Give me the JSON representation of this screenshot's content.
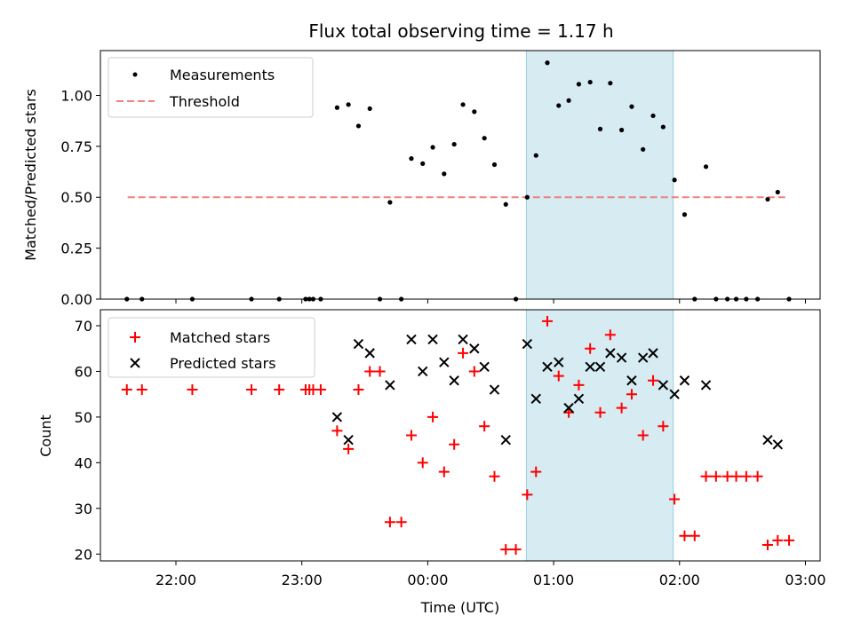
{
  "chart_data": [
    {
      "type": "scatter",
      "title": "Flux total observing time = 1.17 h",
      "xlabel": "",
      "ylabel": "Matched/Predicted stars",
      "ylim": [
        0,
        1.22
      ],
      "yticks": [
        "0.00",
        "0.25",
        "0.50",
        "0.75",
        "1.00"
      ],
      "ytick_values": [
        0,
        0.25,
        0.5,
        0.75,
        1.0
      ],
      "x_unit": "hours since 00:00 UTC",
      "shaded_interval": [
        "00:47",
        "01:57"
      ],
      "legend_position": "top-left",
      "threshold": {
        "name": "Threshold",
        "value": 0.5,
        "x_range": [
          "21:37",
          "02:52"
        ],
        "color": "#f08080"
      },
      "series": [
        {
          "name": "Measurements",
          "marker": "dot",
          "color": "#000000",
          "points": [
            [
              -2.39,
              0.0
            ],
            [
              -2.27,
              0.0
            ],
            [
              -1.87,
              0.0
            ],
            [
              -1.4,
              0.0
            ],
            [
              -1.18,
              0.0
            ],
            [
              -0.97,
              0.0
            ],
            [
              -0.94,
              0.0
            ],
            [
              -0.91,
              0.0
            ],
            [
              -0.85,
              0.0
            ],
            [
              -0.72,
              0.94
            ],
            [
              -0.63,
              0.955
            ],
            [
              -0.55,
              0.85
            ],
            [
              -0.46,
              0.935
            ],
            [
              -0.38,
              0.0
            ],
            [
              -0.3,
              0.475
            ],
            [
              -0.21,
              0.0
            ],
            [
              -0.13,
              0.69
            ],
            [
              -0.04,
              0.665
            ],
            [
              0.04,
              0.745
            ],
            [
              0.13,
              0.615
            ],
            [
              0.21,
              0.76
            ],
            [
              0.28,
              0.955
            ],
            [
              0.37,
              0.92
            ],
            [
              0.45,
              0.79
            ],
            [
              0.53,
              0.66
            ],
            [
              0.62,
              0.465
            ],
            [
              0.7,
              0.0
            ],
            [
              0.79,
              0.5
            ],
            [
              0.86,
              0.705
            ],
            [
              0.95,
              1.16
            ],
            [
              1.04,
              0.95
            ],
            [
              1.12,
              0.975
            ],
            [
              1.2,
              1.055
            ],
            [
              1.29,
              1.065
            ],
            [
              1.37,
              0.835
            ],
            [
              1.45,
              1.06
            ],
            [
              1.54,
              0.83
            ],
            [
              1.62,
              0.945
            ],
            [
              1.71,
              0.735
            ],
            [
              1.79,
              0.9
            ],
            [
              1.87,
              0.845
            ],
            [
              1.96,
              0.585
            ],
            [
              2.04,
              0.415
            ],
            [
              2.12,
              0.0
            ],
            [
              2.21,
              0.65
            ],
            [
              2.29,
              0.0
            ],
            [
              2.38,
              0.0
            ],
            [
              2.45,
              0.0
            ],
            [
              2.53,
              0.0
            ],
            [
              2.62,
              0.0
            ],
            [
              2.7,
              0.49
            ],
            [
              2.78,
              0.525
            ],
            [
              2.87,
              0.0
            ]
          ]
        }
      ]
    },
    {
      "type": "scatter",
      "title": "",
      "xlabel": "Time (UTC)",
      "ylabel": "Count",
      "ylim": [
        18.5,
        73.5
      ],
      "yticks": [
        "20",
        "30",
        "40",
        "50",
        "60",
        "70"
      ],
      "ytick_values": [
        20,
        30,
        40,
        50,
        60,
        70
      ],
      "xlim": [
        "21:24",
        "03:07"
      ],
      "xtick_labels": [
        "22:00",
        "23:00",
        "00:00",
        "01:00",
        "02:00",
        "03:00"
      ],
      "xtick_values": [
        -2,
        -1,
        0,
        1,
        2,
        3
      ],
      "x_unit": "hours since 00:00 UTC",
      "shaded_interval": [
        "00:47",
        "01:57"
      ],
      "legend_position": "top-left",
      "series": [
        {
          "name": "Matched stars",
          "marker": "plus",
          "color": "#ff0000",
          "points": [
            [
              -2.39,
              56
            ],
            [
              -2.27,
              56
            ],
            [
              -1.87,
              56
            ],
            [
              -1.4,
              56
            ],
            [
              -1.18,
              56
            ],
            [
              -0.97,
              56
            ],
            [
              -0.94,
              56
            ],
            [
              -0.91,
              56
            ],
            [
              -0.85,
              56
            ],
            [
              -0.72,
              47
            ],
            [
              -0.63,
              43
            ],
            [
              -0.55,
              56
            ],
            [
              -0.46,
              60
            ],
            [
              -0.38,
              60
            ],
            [
              -0.3,
              27
            ],
            [
              -0.21,
              27
            ],
            [
              -0.13,
              46
            ],
            [
              -0.04,
              40
            ],
            [
              0.04,
              50
            ],
            [
              0.13,
              38
            ],
            [
              0.21,
              44
            ],
            [
              0.28,
              64
            ],
            [
              0.37,
              60
            ],
            [
              0.45,
              48
            ],
            [
              0.53,
              37
            ],
            [
              0.62,
              21
            ],
            [
              0.7,
              21
            ],
            [
              0.79,
              33
            ],
            [
              0.86,
              38
            ],
            [
              0.95,
              71
            ],
            [
              1.04,
              59
            ],
            [
              1.12,
              51
            ],
            [
              1.2,
              57
            ],
            [
              1.29,
              65
            ],
            [
              1.37,
              51
            ],
            [
              1.45,
              68
            ],
            [
              1.54,
              52
            ],
            [
              1.62,
              55
            ],
            [
              1.71,
              46
            ],
            [
              1.79,
              58
            ],
            [
              1.87,
              48
            ],
            [
              1.96,
              32
            ],
            [
              2.04,
              24
            ],
            [
              2.12,
              24
            ],
            [
              2.21,
              37
            ],
            [
              2.29,
              37
            ],
            [
              2.38,
              37
            ],
            [
              2.45,
              37
            ],
            [
              2.53,
              37
            ],
            [
              2.62,
              37
            ],
            [
              2.7,
              22
            ],
            [
              2.78,
              23
            ],
            [
              2.87,
              23
            ]
          ]
        },
        {
          "name": "Predicted stars",
          "marker": "x",
          "color": "#000000",
          "points": [
            [
              -0.72,
              50
            ],
            [
              -0.63,
              45
            ],
            [
              -0.55,
              66
            ],
            [
              -0.46,
              64
            ],
            [
              -0.3,
              57
            ],
            [
              -0.13,
              67
            ],
            [
              -0.04,
              60
            ],
            [
              0.04,
              67
            ],
            [
              0.13,
              62
            ],
            [
              0.21,
              58
            ],
            [
              0.28,
              67
            ],
            [
              0.37,
              65
            ],
            [
              0.45,
              61
            ],
            [
              0.53,
              56
            ],
            [
              0.62,
              45
            ],
            [
              0.79,
              66
            ],
            [
              0.86,
              54
            ],
            [
              0.95,
              61
            ],
            [
              1.04,
              62
            ],
            [
              1.12,
              52
            ],
            [
              1.2,
              54
            ],
            [
              1.29,
              61
            ],
            [
              1.37,
              61
            ],
            [
              1.45,
              64
            ],
            [
              1.54,
              63
            ],
            [
              1.62,
              58
            ],
            [
              1.71,
              63
            ],
            [
              1.79,
              64
            ],
            [
              1.87,
              57
            ],
            [
              1.96,
              55
            ],
            [
              2.04,
              58
            ],
            [
              2.21,
              57
            ],
            [
              2.7,
              45
            ],
            [
              2.78,
              44
            ]
          ]
        }
      ]
    }
  ]
}
